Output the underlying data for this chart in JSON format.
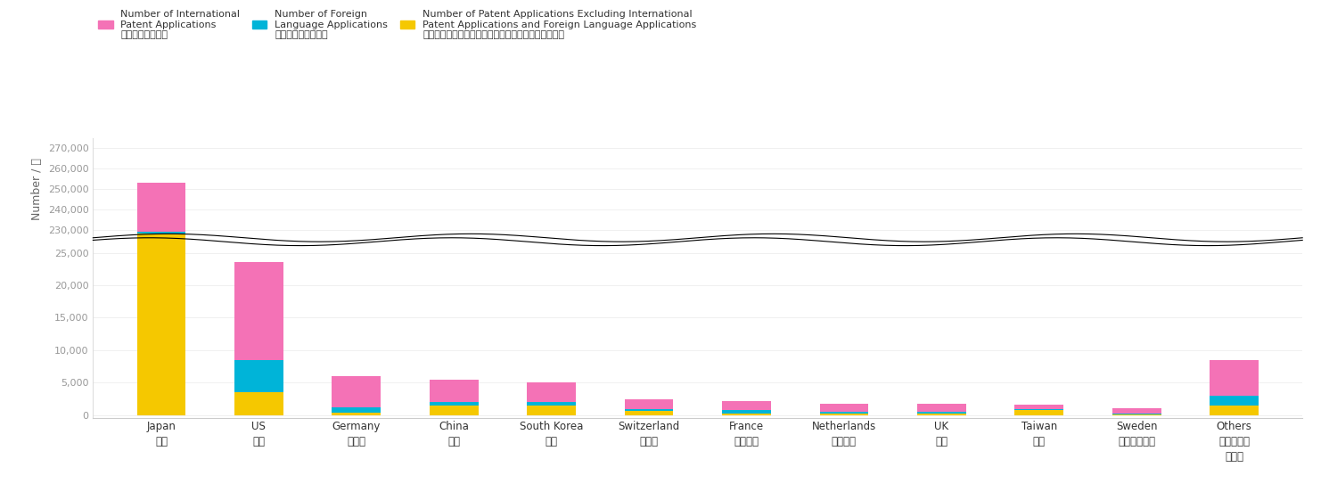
{
  "categories": [
    "Japan\n日本",
    "US\n米国",
    "Germany\nドイツ",
    "China\n中国",
    "South Korea\n韓国",
    "Switzerland\nスイス",
    "France\nフランス",
    "Netherlands\nオランダ",
    "UK\n英国",
    "Taiwan\n台湾",
    "Sweden\nスウェーデン",
    "Others\nその他の国\n・地域"
  ],
  "yellow": [
    228000,
    3500,
    400,
    1500,
    1500,
    600,
    200,
    200,
    200,
    700,
    100,
    1500
  ],
  "cyan": [
    1000,
    5000,
    800,
    500,
    500,
    300,
    500,
    300,
    300,
    200,
    100,
    1500
  ],
  "pink": [
    24000,
    15000,
    4800,
    3500,
    3000,
    1500,
    1500,
    1200,
    1200,
    700,
    800,
    5500
  ],
  "color_yellow": "#F5C800",
  "color_cyan": "#00B4D8",
  "color_pink": "#F472B6",
  "ylabel": "Number / 件",
  "upper_ylim_min": 225000,
  "upper_ylim_max": 275000,
  "lower_ylim_min": -500,
  "lower_ylim_max": 27000,
  "upper_ticks": [
    230000,
    240000,
    250000,
    260000,
    270000
  ],
  "lower_ticks": [
    0,
    5000,
    10000,
    15000,
    20000,
    25000
  ],
  "legend_items": [
    {
      "label": "Number of International\nPatent Applications\n国際特許出願件数",
      "color": "#F472B6"
    },
    {
      "label": "Number of Foreign\nLanguage Applications\n外国語書面出願件数",
      "color": "#00B4D8"
    },
    {
      "label": "Number of Patent Applications Excluding International\nPatent Applications and Foreign Language Applications\n国際特許出願及び外国語書面出願を除く特許出願件数",
      "color": "#F5C800"
    }
  ],
  "background_color": "#FFFFFF"
}
